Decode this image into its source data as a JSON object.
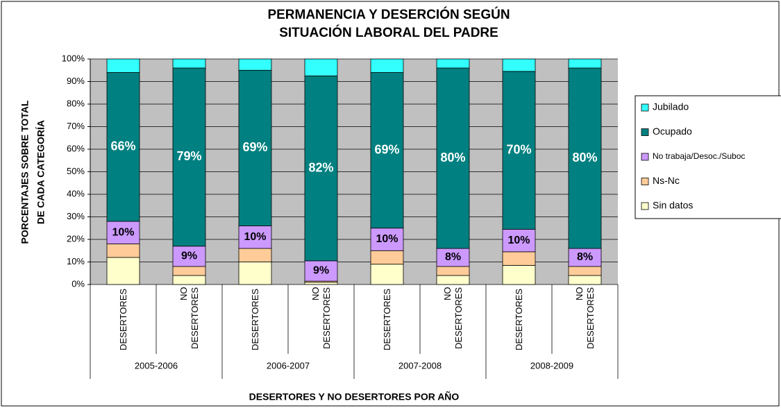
{
  "chart_data": {
    "type": "stacked_bar",
    "title": [
      "PERMANENCIA Y DESERCIÓN SEGÚN",
      "SITUACIÓN LABORAL DEL PADRE"
    ],
    "ylabel": [
      "PORCENTAJES SOBRE TOTAL",
      "DE CADA CATEGORÍA"
    ],
    "xlabel": "DESERTORES Y NO DESERTORES POR AÑO",
    "categories": [
      "DESERTORES",
      "NO DESERTORES",
      "DESERTORES",
      "NO DESERTORES",
      "DESERTORES",
      "NO DESERTORES",
      "DESERTORES",
      "NO DESERTORES"
    ],
    "groups": [
      "2005-2006",
      "2006-2007",
      "2007-2008",
      "2008-2009"
    ],
    "series": [
      {
        "name": "Sin datos",
        "color": "#ffffcc",
        "values": [
          12,
          4,
          10,
          1,
          9,
          4,
          8.5,
          4
        ]
      },
      {
        "name": "Ns-Nc",
        "color": "#ffcc99",
        "values": [
          6,
          4,
          6,
          0.5,
          6,
          4,
          6,
          4
        ]
      },
      {
        "name": "No trabaja/Desoc./Suboc",
        "color": "#cc99ff",
        "values": [
          10,
          9,
          10,
          9,
          10,
          8,
          10,
          8
        ],
        "value_labels": [
          "10%",
          "9%",
          "10%",
          "9%",
          "10%",
          "8%",
          "10%",
          "8%"
        ]
      },
      {
        "name": "Ocupado",
        "color": "#008080",
        "values": [
          66,
          79,
          69,
          82,
          69,
          80,
          70,
          80
        ],
        "value_labels": [
          "66%",
          "79%",
          "69%",
          "82%",
          "69%",
          "80%",
          "70%",
          "80%"
        ]
      },
      {
        "name": "Jubilado",
        "color": "#33ffff",
        "values": [
          6,
          4,
          5,
          7.5,
          6,
          4,
          5.5,
          4
        ]
      }
    ],
    "ylim": [
      0,
      100
    ],
    "yticks": [
      {
        "value": 0,
        "label": "0%"
      },
      {
        "value": 10,
        "label": "10%"
      },
      {
        "value": 20,
        "label": "20%"
      },
      {
        "value": 30,
        "label": "30%"
      },
      {
        "value": 40,
        "label": "40%"
      },
      {
        "value": 50,
        "label": "50%"
      },
      {
        "value": 60,
        "label": "60%"
      },
      {
        "value": 70,
        "label": "70%"
      },
      {
        "value": 80,
        "label": "80%"
      },
      {
        "value": 90,
        "label": "90%"
      },
      {
        "value": 100,
        "label": "100%"
      }
    ],
    "grid": true,
    "legend": "right"
  }
}
